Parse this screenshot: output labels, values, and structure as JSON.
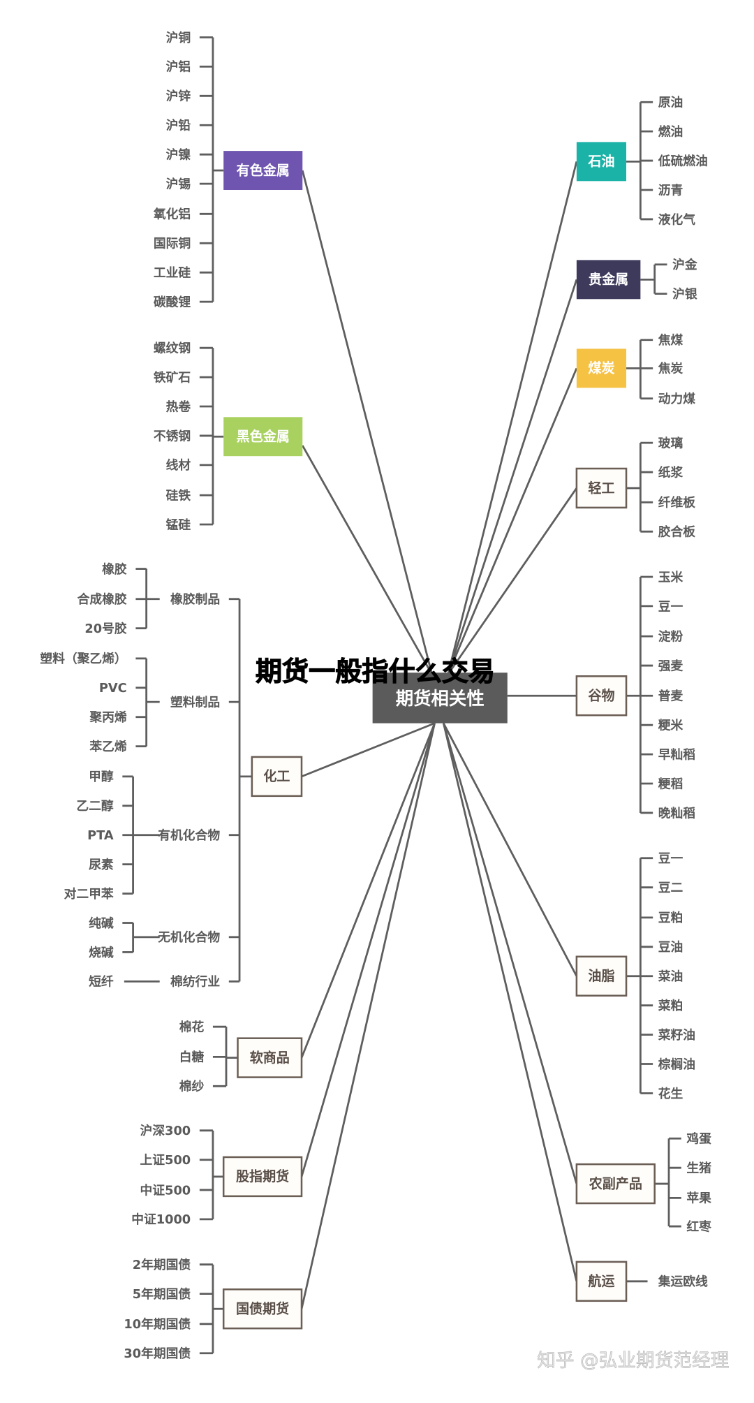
{
  "title": "期货一般指什么交易",
  "center": {
    "label": "期货相关性",
    "color": "#5b5b5b"
  },
  "watermark": "知乎 @弘业期货范经理",
  "left_branches": [
    {
      "label": "有色金属",
      "color": "#6f55b0",
      "filled": true,
      "leaves": [
        "沪铜",
        "沪铝",
        "沪锌",
        "沪铅",
        "沪镍",
        "沪锡",
        "氧化铝",
        "国际铜",
        "工业硅",
        "碳酸锂"
      ]
    },
    {
      "label": "黑色金属",
      "color": "#a9d160",
      "filled": true,
      "leaves": [
        "螺纹钢",
        "铁矿石",
        "热卷",
        "不锈钢",
        "线材",
        "硅铁",
        "锰硅"
      ]
    },
    {
      "label": "化工",
      "color": "#6b5e55",
      "filled": false,
      "groups": [
        {
          "label": "橡胶制品",
          "leaves": [
            "橡胶",
            "合成橡胶",
            "20号胶"
          ]
        },
        {
          "label": "塑料制品",
          "leaves": [
            "塑料（聚乙烯）",
            "PVC",
            "聚丙烯",
            "苯乙烯"
          ]
        },
        {
          "label": "有机化合物",
          "leaves": [
            "甲醇",
            "乙二醇",
            "PTA",
            "尿素",
            "对二甲苯"
          ]
        },
        {
          "label": "无机化合物",
          "leaves": [
            "纯碱",
            "烧碱"
          ]
        },
        {
          "label": "棉纺行业",
          "leaves": [
            "短纤"
          ]
        }
      ]
    },
    {
      "label": "软商品",
      "color": "#6b5e55",
      "filled": false,
      "leaves": [
        "棉花",
        "白糖",
        "棉纱"
      ]
    },
    {
      "label": "股指期货",
      "color": "#6b5e55",
      "filled": false,
      "leaves": [
        "沪深300",
        "上证500",
        "中证500",
        "中证1000"
      ]
    },
    {
      "label": "国债期货",
      "color": "#6b5e55",
      "filled": false,
      "leaves": [
        "2年期国债",
        "5年期国债",
        "10年期国债",
        "30年期国债"
      ]
    }
  ],
  "right_branches": [
    {
      "label": "石油",
      "color": "#1bb3a8",
      "filled": true,
      "leaves": [
        "原油",
        "燃油",
        "低硫燃油",
        "沥青",
        "液化气"
      ]
    },
    {
      "label": "贵金属",
      "color": "#3d3a5c",
      "filled": true,
      "leaves": [
        "沪金",
        "沪银"
      ]
    },
    {
      "label": "煤炭",
      "color": "#f5c244",
      "filled": true,
      "leaves": [
        "焦煤",
        "焦炭",
        "动力煤"
      ]
    },
    {
      "label": "轻工",
      "color": "#6b5e55",
      "filled": false,
      "leaves": [
        "玻璃",
        "纸浆",
        "纤维板",
        "胶合板"
      ]
    },
    {
      "label": "谷物",
      "color": "#6b5e55",
      "filled": false,
      "leaves": [
        "玉米",
        "豆一",
        "淀粉",
        "强麦",
        "普麦",
        "粳米",
        "早籼稻",
        "粳稻",
        "晚籼稻"
      ]
    },
    {
      "label": "油脂",
      "color": "#6b5e55",
      "filled": false,
      "leaves": [
        "豆一",
        "豆二",
        "豆粕",
        "豆油",
        "菜油",
        "菜粕",
        "菜籽油",
        "棕榈油",
        "花生"
      ]
    },
    {
      "label": "农副产品",
      "color": "#6b5e55",
      "filled": false,
      "leaves": [
        "鸡蛋",
        "生猪",
        "苹果",
        "红枣"
      ]
    },
    {
      "label": "航运",
      "color": "#6b5e55",
      "filled": false,
      "leaves": [
        "集运欧线"
      ]
    }
  ]
}
